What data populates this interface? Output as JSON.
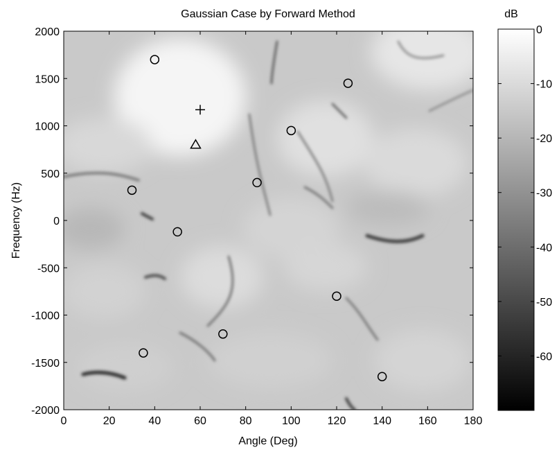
{
  "chart_data": {
    "type": "heatmap",
    "title": "Gaussian Case by Forward Method",
    "xlabel": "Angle (Deg)",
    "ylabel": "Frequency (Hz)",
    "xlim": [
      0,
      180
    ],
    "ylim": [
      -2000,
      2000
    ],
    "x_ticks": [
      0,
      20,
      40,
      60,
      80,
      100,
      120,
      140,
      160,
      180
    ],
    "y_ticks": [
      -2000,
      -1500,
      -1000,
      -500,
      0,
      500,
      1000,
      1500,
      2000
    ],
    "colorbar": {
      "label": "dB",
      "range": [
        -70,
        0
      ],
      "ticks": [
        0,
        -10,
        -20,
        -30,
        -40,
        -50,
        -60
      ],
      "colormap": "gray"
    },
    "markers": {
      "circles": [
        {
          "x": 40,
          "y": 1700
        },
        {
          "x": 125,
          "y": 1450
        },
        {
          "x": 100,
          "y": 950
        },
        {
          "x": 85,
          "y": 400
        },
        {
          "x": 30,
          "y": 320
        },
        {
          "x": 50,
          "y": -120
        },
        {
          "x": 120,
          "y": -800
        },
        {
          "x": 70,
          "y": -1200
        },
        {
          "x": 35,
          "y": -1400
        },
        {
          "x": 140,
          "y": -1650
        }
      ],
      "plus": {
        "x": 60,
        "y": 1170
      },
      "triangle": {
        "x": 58,
        "y": 800
      }
    }
  }
}
